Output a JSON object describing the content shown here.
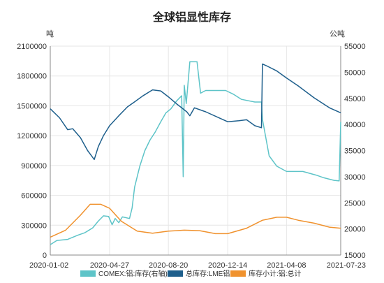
{
  "chart_data": {
    "type": "line",
    "title": "全球铝显性库存",
    "left_unit": "吨",
    "right_unit": "公吨",
    "x_ticks": [
      "2020-01-02",
      "2020-04-27",
      "2020-08-20",
      "2020-12-14",
      "2021-04-08",
      "2021-07-23"
    ],
    "y_left": {
      "min": 0,
      "max": 2100000,
      "ticks": [
        "0",
        "300000",
        "600000",
        "900000",
        "1200000",
        "1500000",
        "1800000",
        "2100000"
      ]
    },
    "y_right": {
      "min": 15000,
      "max": 55000,
      "ticks": [
        "15000",
        "20000",
        "25000",
        "30000",
        "35000",
        "40000",
        "45000",
        "50000",
        "55000"
      ]
    },
    "legend_position": "bottom",
    "grid": true,
    "series": [
      {
        "name": "COMEX:铝:库存(右轴)",
        "axis": "right",
        "color": "#5ec4c8",
        "points": [
          [
            "2020-01-02",
            17000
          ],
          [
            "2020-01-15",
            17800
          ],
          [
            "2020-02-05",
            18000
          ],
          [
            "2020-02-25",
            18800
          ],
          [
            "2020-03-10",
            19300
          ],
          [
            "2020-03-25",
            20200
          ],
          [
            "2020-04-05",
            21500
          ],
          [
            "2020-04-15",
            22500
          ],
          [
            "2020-04-25",
            22400
          ],
          [
            "2020-05-02",
            20800
          ],
          [
            "2020-05-08",
            22000
          ],
          [
            "2020-05-15",
            21200
          ],
          [
            "2020-05-22",
            22300
          ],
          [
            "2020-06-05",
            22000
          ],
          [
            "2020-06-10",
            24000
          ],
          [
            "2020-06-15",
            28000
          ],
          [
            "2020-06-25",
            32000
          ],
          [
            "2020-07-05",
            35000
          ],
          [
            "2020-07-15",
            37000
          ],
          [
            "2020-07-25",
            38500
          ],
          [
            "2020-08-05",
            40500
          ],
          [
            "2020-08-15",
            42200
          ],
          [
            "2020-08-25",
            43000
          ],
          [
            "2020-09-05",
            44500
          ],
          [
            "2020-09-15",
            45500
          ],
          [
            "2020-09-18",
            30000
          ],
          [
            "2020-09-20",
            47500
          ],
          [
            "2020-09-24",
            44000
          ],
          [
            "2020-10-01",
            52000
          ],
          [
            "2020-10-15",
            52000
          ],
          [
            "2020-10-22",
            46000
          ],
          [
            "2020-11-01",
            46500
          ],
          [
            "2020-11-20",
            46500
          ],
          [
            "2020-12-10",
            46500
          ],
          [
            "2020-12-25",
            45800
          ],
          [
            "2021-01-10",
            44800
          ],
          [
            "2021-02-05",
            44300
          ],
          [
            "2021-02-18",
            44300
          ],
          [
            "2021-02-20",
            41000
          ],
          [
            "2021-03-05",
            34000
          ],
          [
            "2021-03-20",
            32000
          ],
          [
            "2021-04-08",
            31000
          ],
          [
            "2021-05-10",
            31000
          ],
          [
            "2021-06-05",
            30300
          ],
          [
            "2021-06-20",
            29800
          ],
          [
            "2021-07-10",
            29300
          ],
          [
            "2021-07-20",
            29200
          ],
          [
            "2021-07-23",
            40500
          ]
        ]
      },
      {
        "name": "总库存:LME铝",
        "axis": "left",
        "color": "#1e5f8c",
        "points": [
          [
            "2020-01-02",
            1470000
          ],
          [
            "2020-01-20",
            1380000
          ],
          [
            "2020-02-05",
            1260000
          ],
          [
            "2020-02-15",
            1270000
          ],
          [
            "2020-03-01",
            1180000
          ],
          [
            "2020-03-15",
            1050000
          ],
          [
            "2020-03-28",
            960000
          ],
          [
            "2020-04-05",
            1090000
          ],
          [
            "2020-04-15",
            1200000
          ],
          [
            "2020-04-27",
            1300000
          ],
          [
            "2020-05-15",
            1400000
          ],
          [
            "2020-06-01",
            1490000
          ],
          [
            "2020-06-15",
            1540000
          ],
          [
            "2020-07-01",
            1600000
          ],
          [
            "2020-07-20",
            1660000
          ],
          [
            "2020-08-05",
            1650000
          ],
          [
            "2020-08-20",
            1590000
          ],
          [
            "2020-09-05",
            1520000
          ],
          [
            "2020-09-25",
            1440000
          ],
          [
            "2020-10-01",
            1400000
          ],
          [
            "2020-10-10",
            1480000
          ],
          [
            "2020-11-01",
            1440000
          ],
          [
            "2020-12-01",
            1370000
          ],
          [
            "2020-12-14",
            1340000
          ],
          [
            "2021-01-05",
            1350000
          ],
          [
            "2021-01-20",
            1360000
          ],
          [
            "2021-02-05",
            1300000
          ],
          [
            "2021-02-18",
            1280000
          ],
          [
            "2021-02-20",
            1920000
          ],
          [
            "2021-03-01",
            1900000
          ],
          [
            "2021-03-20",
            1850000
          ],
          [
            "2021-04-08",
            1780000
          ],
          [
            "2021-05-01",
            1700000
          ],
          [
            "2021-06-01",
            1580000
          ],
          [
            "2021-07-01",
            1480000
          ],
          [
            "2021-07-23",
            1430000
          ]
        ]
      },
      {
        "name": "库存小计:铝:总计",
        "axis": "left",
        "color": "#f0922e",
        "points": [
          [
            "2020-01-02",
            180000
          ],
          [
            "2020-02-01",
            250000
          ],
          [
            "2020-03-01",
            400000
          ],
          [
            "2020-03-20",
            510000
          ],
          [
            "2020-04-10",
            510000
          ],
          [
            "2020-04-27",
            470000
          ],
          [
            "2020-05-20",
            340000
          ],
          [
            "2020-06-20",
            240000
          ],
          [
            "2020-07-20",
            220000
          ],
          [
            "2020-08-20",
            240000
          ],
          [
            "2020-09-20",
            250000
          ],
          [
            "2020-10-20",
            245000
          ],
          [
            "2020-11-20",
            215000
          ],
          [
            "2020-12-14",
            215000
          ],
          [
            "2021-01-20",
            270000
          ],
          [
            "2021-02-20",
            350000
          ],
          [
            "2021-03-20",
            380000
          ],
          [
            "2021-04-08",
            380000
          ],
          [
            "2021-05-01",
            350000
          ],
          [
            "2021-06-01",
            320000
          ],
          [
            "2021-07-01",
            280000
          ],
          [
            "2021-07-23",
            270000
          ]
        ]
      }
    ]
  }
}
